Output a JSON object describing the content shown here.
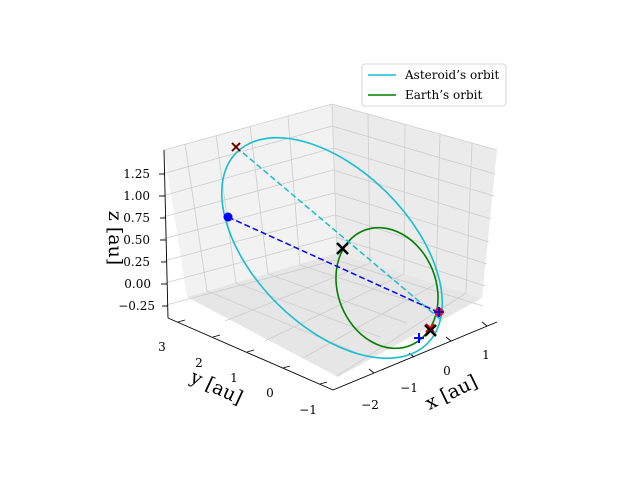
{
  "chart_data": {
    "type": "line",
    "projection": "3d",
    "xlabel": "x [au]",
    "ylabel": "y [au]",
    "zlabel": "z [au]",
    "x_ticks": [
      "−2",
      "−1",
      "0",
      "1"
    ],
    "y_ticks": [
      "−1",
      "0",
      "1",
      "2",
      "3"
    ],
    "z_ticks": [
      "−0.25",
      "0.00",
      "0.25",
      "0.50",
      "0.75",
      "1.00",
      "1.25"
    ],
    "legend_position": "top-right",
    "colors": {
      "asteroid": "#17becf",
      "earth": "#008000",
      "blue_line": "#0000ff",
      "marker_black": "#000000",
      "marker_red": "#ff0000"
    },
    "series": [
      {
        "name": "Asteroid’s orbit",
        "color": "#17becf"
      },
      {
        "name": "Earth’s orbit",
        "color": "#008000"
      }
    ]
  }
}
